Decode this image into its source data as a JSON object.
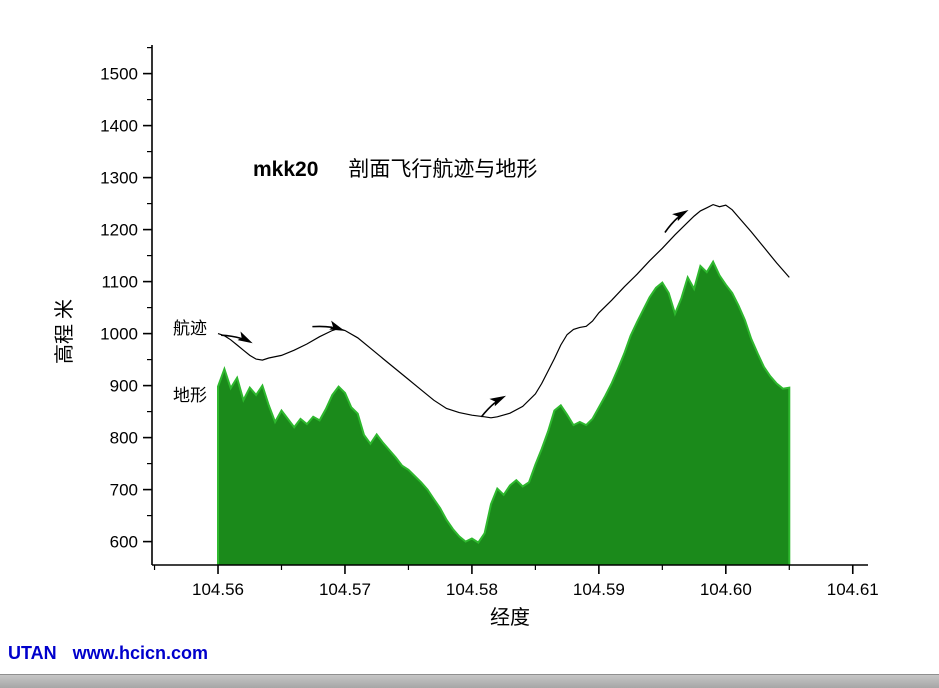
{
  "page": {
    "background": "#ffffff"
  },
  "labels": {
    "track": "航迹",
    "terrain": "地形"
  },
  "footer": {
    "brand": "UTAN",
    "url": "www.hcicn.com",
    "color": "#0000cc"
  },
  "chart_data": {
    "type": "area",
    "title_bold": "mkk20",
    "title_text": "剖面飞行航迹与地形",
    "xlabel": "经度",
    "ylabel": "高程 米",
    "xlim": [
      104.5548,
      104.6112
    ],
    "ylim": [
      555,
      1555
    ],
    "grid": false,
    "legend_position": "none",
    "x_ticks": [
      104.56,
      104.57,
      104.58,
      104.59,
      104.6,
      104.61
    ],
    "x_tick_labels": [
      "104.56",
      "104.57",
      "104.58",
      "104.59",
      "104.60",
      "104.61"
    ],
    "y_ticks": [
      600,
      700,
      800,
      900,
      1000,
      1100,
      1200,
      1300,
      1400,
      1500
    ],
    "x_minor_step": 0.005,
    "y_minor_step": 50,
    "axis_color": "#000000",
    "series": [
      {
        "name": "地形",
        "type": "area",
        "fill": "#1b8a1b",
        "stroke": "#2eb82e",
        "x0": 104.56,
        "dx": 0.0005,
        "values": [
          898,
          932,
          895,
          915,
          872,
          896,
          882,
          900,
          862,
          830,
          852,
          836,
          820,
          836,
          826,
          840,
          833,
          855,
          882,
          898,
          886,
          858,
          846,
          805,
          788,
          806,
          790,
          776,
          762,
          746,
          738,
          726,
          714,
          700,
          682,
          664,
          642,
          624,
          610,
          600,
          606,
          598,
          616,
          672,
          702,
          690,
          708,
          718,
          706,
          714,
          748,
          778,
          812,
          852,
          862,
          844,
          824,
          830,
          824,
          836,
          858,
          880,
          904,
          932,
          962,
          996,
          1022,
          1046,
          1070,
          1088,
          1098,
          1078,
          1038,
          1068,
          1108,
          1086,
          1130,
          1118,
          1138,
          1112,
          1094,
          1078,
          1054,
          1026,
          990,
          962,
          936,
          918,
          904,
          894,
          896
        ]
      },
      {
        "name": "航迹",
        "type": "line",
        "stroke": "#000000",
        "points": [
          [
            104.56,
            1000
          ],
          [
            104.5605,
            996
          ],
          [
            104.561,
            988
          ],
          [
            104.5615,
            978
          ],
          [
            104.562,
            968
          ],
          [
            104.5625,
            958
          ],
          [
            104.563,
            951
          ],
          [
            104.5635,
            949
          ],
          [
            104.564,
            953
          ],
          [
            104.565,
            958
          ],
          [
            104.566,
            968
          ],
          [
            104.567,
            980
          ],
          [
            104.568,
            994
          ],
          [
            104.569,
            1006
          ],
          [
            104.5695,
            1010
          ],
          [
            104.57,
            1006
          ],
          [
            104.571,
            992
          ],
          [
            104.572,
            972
          ],
          [
            104.573,
            952
          ],
          [
            104.574,
            932
          ],
          [
            104.575,
            912
          ],
          [
            104.576,
            892
          ],
          [
            104.577,
            872
          ],
          [
            104.578,
            856
          ],
          [
            104.579,
            848
          ],
          [
            104.58,
            843
          ],
          [
            104.581,
            840
          ],
          [
            104.5815,
            838
          ],
          [
            104.582,
            840
          ],
          [
            104.583,
            847
          ],
          [
            104.584,
            860
          ],
          [
            104.585,
            884
          ],
          [
            104.5855,
            904
          ],
          [
            104.586,
            928
          ],
          [
            104.5865,
            952
          ],
          [
            104.587,
            978
          ],
          [
            104.5875,
            998
          ],
          [
            104.588,
            1008
          ],
          [
            104.5885,
            1012
          ],
          [
            104.589,
            1014
          ],
          [
            104.5895,
            1024
          ],
          [
            104.59,
            1040
          ],
          [
            104.591,
            1064
          ],
          [
            104.592,
            1090
          ],
          [
            104.593,
            1114
          ],
          [
            104.594,
            1140
          ],
          [
            104.595,
            1164
          ],
          [
            104.596,
            1190
          ],
          [
            104.597,
            1214
          ],
          [
            104.5975,
            1226
          ],
          [
            104.598,
            1236
          ],
          [
            104.5985,
            1242
          ],
          [
            104.599,
            1248
          ],
          [
            104.5995,
            1244
          ],
          [
            104.6,
            1247
          ],
          [
            104.6005,
            1238
          ],
          [
            104.601,
            1224
          ],
          [
            104.602,
            1196
          ],
          [
            104.603,
            1166
          ],
          [
            104.604,
            1136
          ],
          [
            104.605,
            1108
          ]
        ]
      }
    ],
    "arrows": [
      {
        "x": 104.5618,
        "y": 992,
        "angle": 25
      },
      {
        "x": 104.569,
        "y": 1013,
        "angle": 18
      },
      {
        "x": 104.5818,
        "y": 868,
        "angle": -30
      },
      {
        "x": 104.5962,
        "y": 1224,
        "angle": -33
      }
    ]
  }
}
